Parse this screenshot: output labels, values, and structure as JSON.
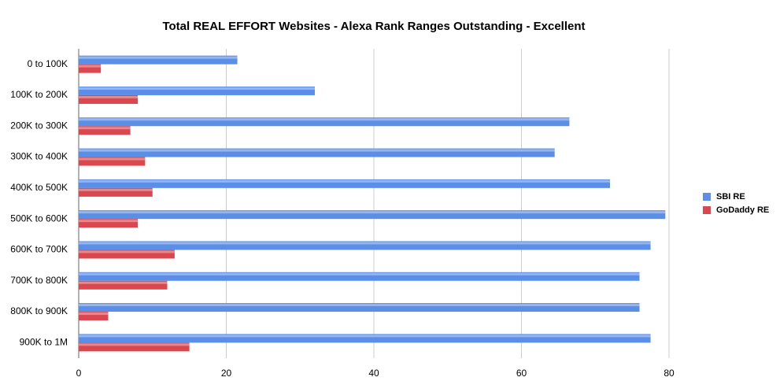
{
  "chart_data": {
    "type": "hbar",
    "title": "Total REAL EFFORT Websites - Alexa Rank Ranges Outstanding - Excellent",
    "categories": [
      "0 to 100K",
      "100K to 200K",
      "200K to 300K",
      "300K to 400K",
      "400K to 500K",
      "500K to 600K",
      "600K to 700K",
      "700K to 800K",
      "800K to 900K",
      "900K to 1M"
    ],
    "series": [
      {
        "name": "SBI RE",
        "color": "#5b8ee6",
        "values": [
          21.5,
          32,
          66.5,
          64.5,
          72,
          79.5,
          77.5,
          76,
          76,
          77.5
        ]
      },
      {
        "name": "GoDaddy RE",
        "color": "#d9474f",
        "values": [
          3,
          8,
          7,
          9,
          10,
          8,
          13,
          12,
          4,
          15
        ]
      }
    ],
    "xlim": [
      0,
      80
    ],
    "xticks": [
      0,
      20,
      40,
      60,
      80
    ],
    "grid": true,
    "legend": "right"
  }
}
